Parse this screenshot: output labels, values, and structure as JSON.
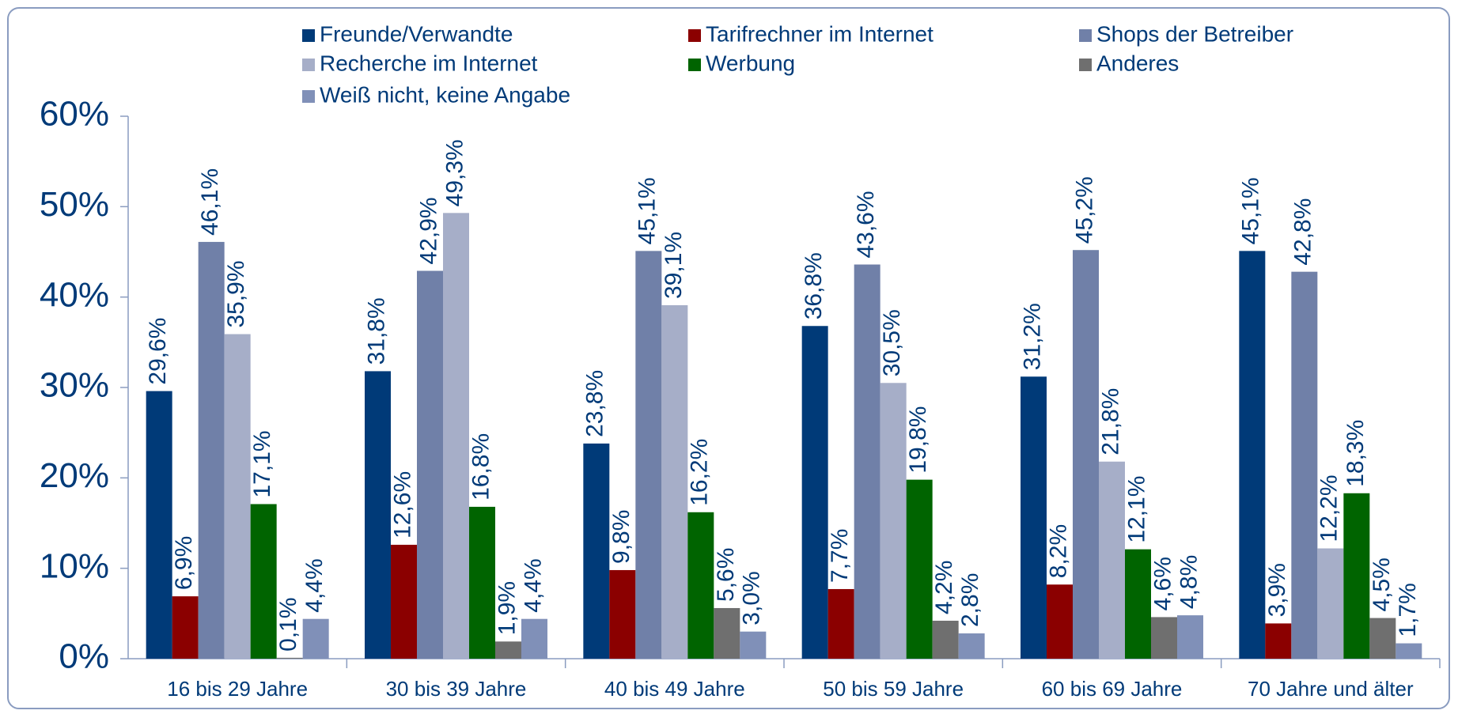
{
  "chart_data": {
    "type": "bar",
    "categories": [
      "16 bis 29 Jahre",
      "30 bis 39 Jahre",
      "40 bis 49 Jahre",
      "50 bis 59 Jahre",
      "60 bis 69 Jahre",
      "70 Jahre und älter"
    ],
    "series": [
      {
        "name": "Freunde/Verwandte",
        "color": "#003a78",
        "values": [
          29.6,
          31.8,
          23.8,
          36.8,
          31.2,
          45.1
        ],
        "value_labels": [
          "29,6%",
          "31,8%",
          "23,8%",
          "36,8%",
          "31,2%",
          "45,1%"
        ]
      },
      {
        "name": "Tarifrechner im Internet",
        "color": "#8b0000",
        "values": [
          6.9,
          12.6,
          9.8,
          7.7,
          8.2,
          3.9
        ],
        "value_labels": [
          "6,9%",
          "12,6%",
          "9,8%",
          "7,7%",
          "8,2%",
          "3,9%"
        ]
      },
      {
        "name": "Shops der Betreiber",
        "color": "#7080a8",
        "values": [
          46.1,
          42.9,
          45.1,
          43.6,
          45.2,
          42.8
        ],
        "value_labels": [
          "46,1%",
          "42,9%",
          "45,1%",
          "43,6%",
          "45,2%",
          "42,8%"
        ]
      },
      {
        "name": "Recherche im Internet",
        "color": "#a6aec8",
        "values": [
          35.9,
          49.3,
          39.1,
          30.5,
          21.8,
          12.2
        ],
        "value_labels": [
          "35,9%",
          "49,3%",
          "39,1%",
          "30,5%",
          "21,8%",
          "12,2%"
        ]
      },
      {
        "name": "Werbung",
        "color": "#006400",
        "values": [
          17.1,
          16.8,
          16.2,
          19.8,
          12.1,
          18.3
        ],
        "value_labels": [
          "17,1%",
          "16,8%",
          "16,2%",
          "19,8%",
          "12,1%",
          "18,3%"
        ]
      },
      {
        "name": "Anderes",
        "color": "#6f6f6f",
        "values": [
          0.1,
          1.9,
          5.6,
          4.2,
          4.6,
          4.5
        ],
        "value_labels": [
          "0,1%",
          "1,9%",
          "5,6%",
          "4,2%",
          "4,6%",
          "4,5%"
        ]
      },
      {
        "name": "Weiß nicht, keine Angabe",
        "color": "#8090b8",
        "values": [
          4.4,
          4.4,
          3.0,
          2.8,
          4.8,
          1.7
        ],
        "value_labels": [
          "4,4%",
          "4,4%",
          "3,0%",
          "2,8%",
          "4,8%",
          "1,7%"
        ]
      }
    ],
    "ylim": [
      0,
      60
    ],
    "yticks": [
      {
        "value": 0,
        "label": "0%"
      },
      {
        "value": 10,
        "label": "10%"
      },
      {
        "value": 20,
        "label": "20%"
      },
      {
        "value": 30,
        "label": "30%"
      },
      {
        "value": 40,
        "label": "40%"
      },
      {
        "value": 50,
        "label": "50%"
      },
      {
        "value": 60,
        "label": "60%"
      }
    ],
    "legend": "top"
  }
}
